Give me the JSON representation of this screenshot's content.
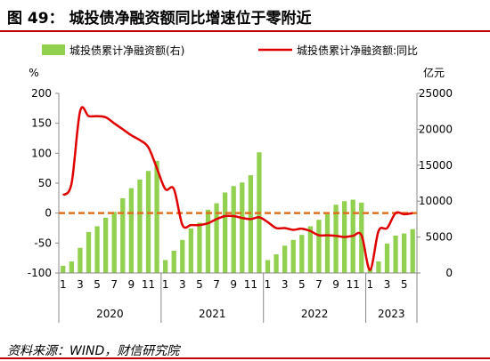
{
  "title": "图 49：  城投债净融资额同比增速位于零附近",
  "source": "资料来源：WIND，财信研究院",
  "chart_data": {
    "type": "bar+line",
    "legend": [
      "城投债累计净融资额(右)",
      "城投债累计净融资额:同比"
    ],
    "legend_position": "top",
    "left_axis": {
      "unit": "%",
      "ylim": [
        -100,
        200
      ],
      "ticks": [
        "-100",
        "-50",
        "0",
        "50",
        "100",
        "150",
        "200"
      ]
    },
    "right_axis": {
      "unit": "亿元",
      "ylim": [
        0,
        25000
      ],
      "ticks": [
        "0",
        "5000",
        "10000",
        "15000",
        "20000",
        "25000"
      ]
    },
    "years": [
      {
        "label": "2020",
        "start": 0,
        "end": 12
      },
      {
        "label": "2021",
        "start": 12,
        "end": 24
      },
      {
        "label": "2022",
        "start": 24,
        "end": 36
      },
      {
        "label": "2023",
        "start": 36,
        "end": 42
      }
    ],
    "month_labels": [
      "1",
      "",
      "3",
      "",
      "5",
      "",
      "7",
      "",
      "9",
      "",
      "11",
      "",
      "1",
      "",
      "3",
      "",
      "5",
      "",
      "7",
      "",
      "9",
      "",
      "11",
      "",
      "1",
      "",
      "3",
      "",
      "5",
      "",
      "7",
      "",
      "9",
      "",
      "11",
      "",
      "1",
      "",
      "3",
      "",
      "5",
      ""
    ],
    "bars": [
      1000,
      1600,
      3500,
      5700,
      6500,
      7700,
      8500,
      10400,
      11800,
      13000,
      14200,
      15600,
      1800,
      3100,
      4600,
      6200,
      7000,
      8800,
      9700,
      11200,
      12100,
      12600,
      13600,
      16800,
      1800,
      2600,
      3800,
      4600,
      5300,
      6500,
      7400,
      8200,
      9500,
      10000,
      10200,
      9800,
      600,
      1600,
      4100,
      5200,
      5500,
      6100
    ],
    "yoy": [
      30,
      50,
      170,
      162,
      162,
      160,
      150,
      140,
      130,
      122,
      110,
      75,
      40,
      40,
      -20,
      -20,
      -20,
      -17,
      -10,
      -5,
      -5,
      -8,
      -10,
      -7,
      -15,
      -25,
      -25,
      -28,
      -26,
      -30,
      -37,
      -37,
      -38,
      -40,
      -38,
      -37,
      -95,
      -30,
      -25,
      0,
      -2,
      0
    ],
    "reference_line": 0
  }
}
